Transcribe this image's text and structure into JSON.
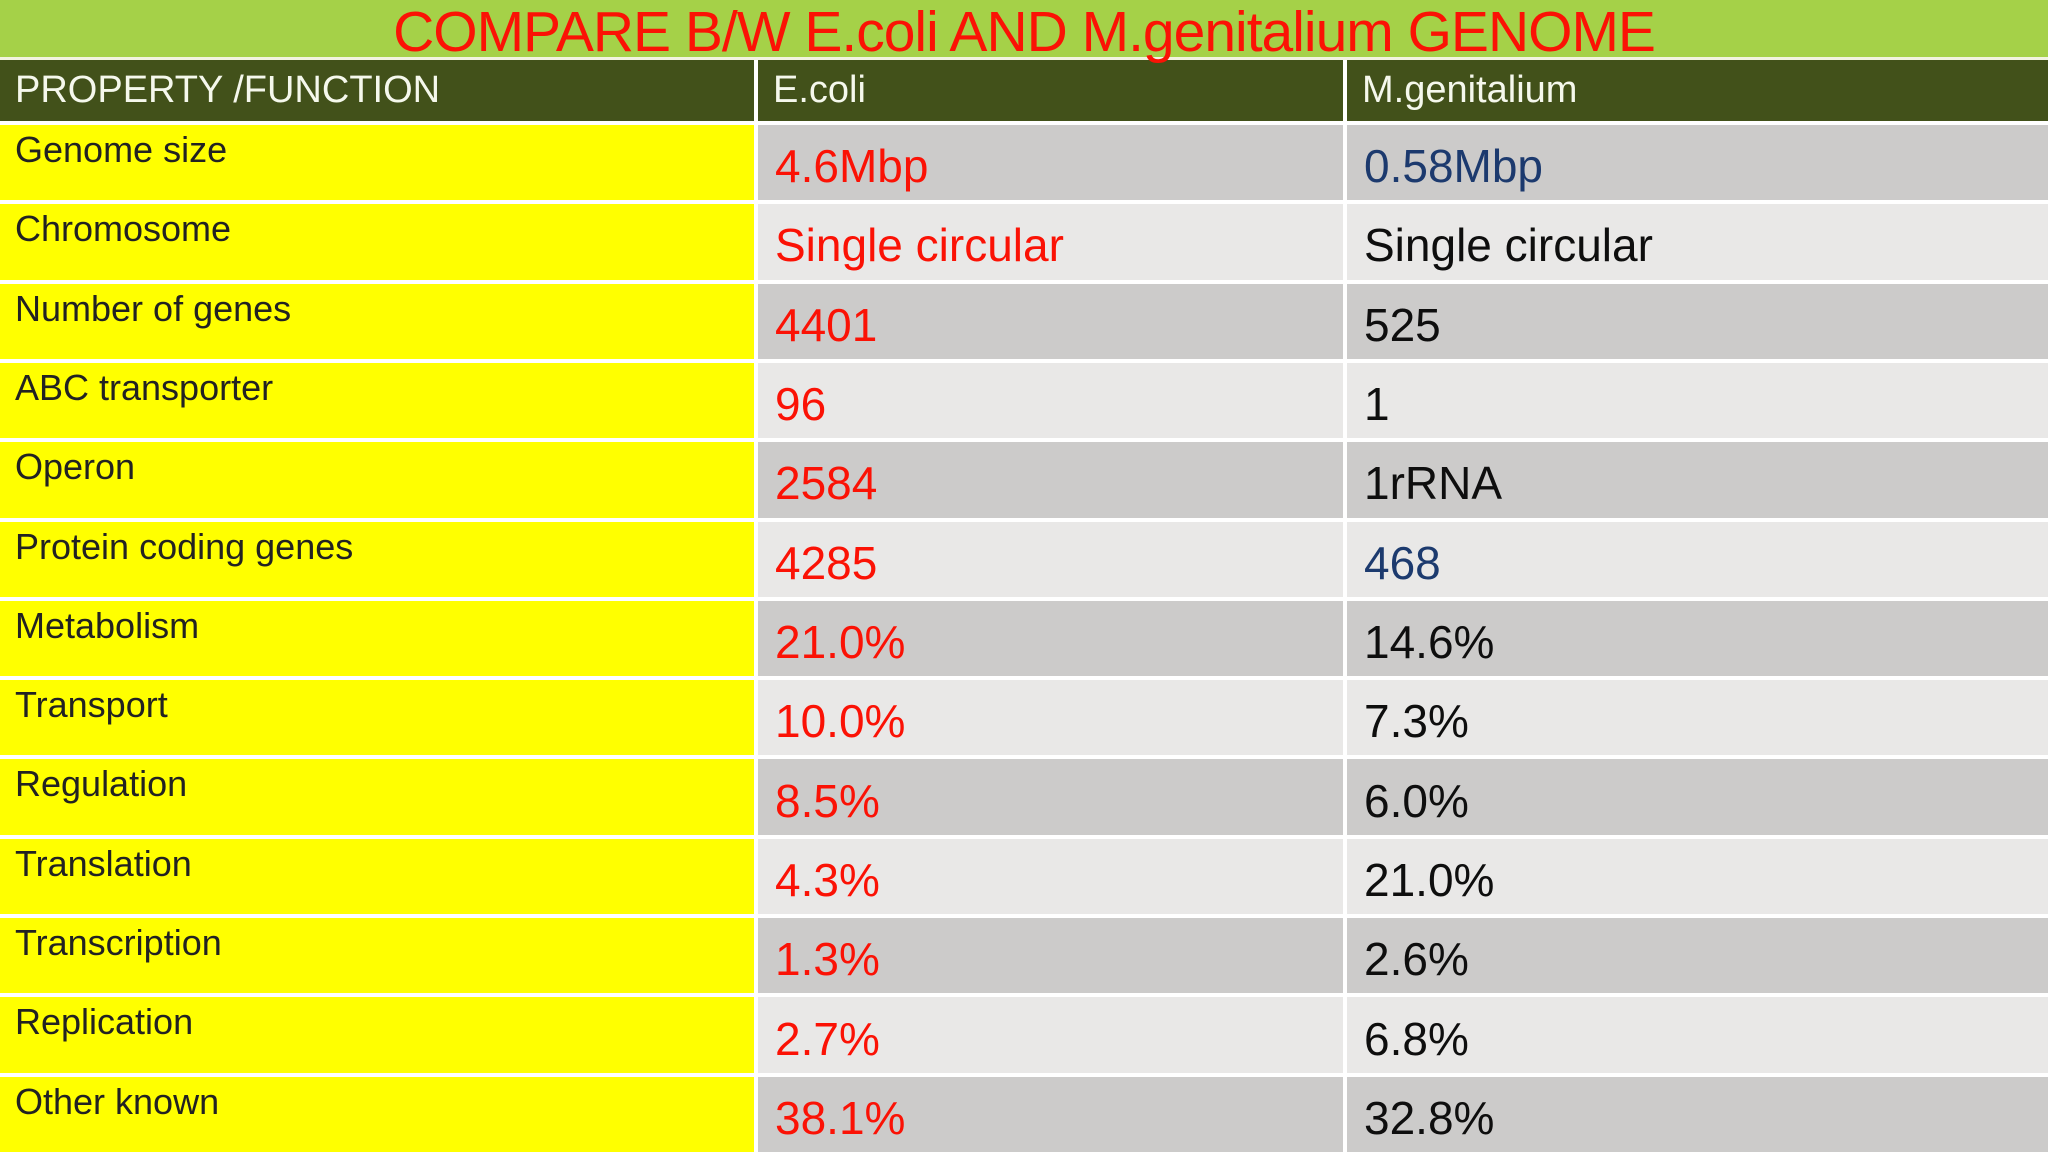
{
  "chart_data": {
    "type": "table",
    "title": "COMPARE B/W E.coli AND M.genitalium GENOME",
    "columns": [
      "PROPERTY /FUNCTION",
      "E.coli",
      "M.genitalium"
    ],
    "rows": [
      {
        "property": "Genome size",
        "ecoli": "4.6Mbp",
        "mgenitalium": "0.58Mbp",
        "mgenitalium_navy": true
      },
      {
        "property": "Chromosome",
        "ecoli": "Single circular",
        "mgenitalium": "Single circular"
      },
      {
        "property": "Number of genes",
        "ecoli": "4401",
        "mgenitalium": "525"
      },
      {
        "property": "ABC transporter",
        "ecoli": "96",
        "mgenitalium": "1"
      },
      {
        "property": "Operon",
        "ecoli": "2584",
        "mgenitalium": "1rRNA"
      },
      {
        "property": "Protein coding genes",
        "ecoli": "4285",
        "mgenitalium": "468",
        "mgenitalium_navy": true
      },
      {
        "property": "Metabolism",
        "ecoli": "21.0%",
        "mgenitalium": "14.6%"
      },
      {
        "property": "Transport",
        "ecoli": "10.0%",
        "mgenitalium": "7.3%"
      },
      {
        "property": "Regulation",
        "ecoli": "8.5%",
        "mgenitalium": "6.0%"
      },
      {
        "property": "Translation",
        "ecoli": "4.3%",
        "mgenitalium": "21.0%"
      },
      {
        "property": "Transcription",
        "ecoli": "1.3%",
        "mgenitalium": "2.6%"
      },
      {
        "property": "Replication",
        "ecoli": "2.7%",
        "mgenitalium": "6.8%"
      },
      {
        "property": "Other known",
        "ecoli": "38.1%",
        "mgenitalium": "32.8%"
      }
    ]
  },
  "colors": {
    "title_background": "#a5d148",
    "title_red": "#fb1205",
    "header_background": "#42511a",
    "header_text": "#f5f8ec",
    "cell_yellow": "#ffff00",
    "label_text": "#222222",
    "value_red": "#fb1205",
    "value_black": "#0e0e0e",
    "value_navy": "#1c3a6e",
    "row_dark": "#cccbca",
    "row_light": "#e9e8e7",
    "separator": "#ffffff"
  }
}
